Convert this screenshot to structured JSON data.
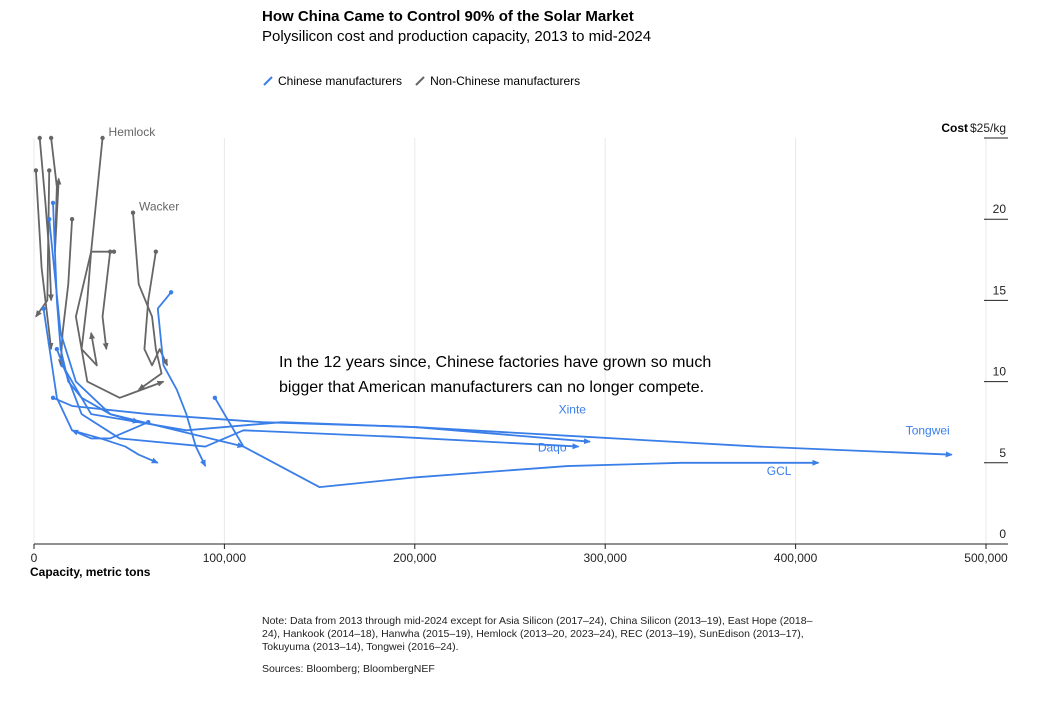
{
  "header": {
    "title": "How China Came to Control 90% of the Solar Market",
    "subtitle": "Polysilicon cost and production capacity, 2013 to mid-2024"
  },
  "legend": {
    "chinese": "Chinese manufacturers",
    "non_chinese": "Non-Chinese manufacturers"
  },
  "annotation": {
    "line1": "In the 12 years since, Chinese factories have grown so much",
    "line2": "bigger that American manufacturers can no longer compete."
  },
  "footer": {
    "note": "Note: Data from 2013 through mid-2024 except for Asia Silicon (2017–24), China Silicon (2013–19), East Hope (2018–24), Hankook (2014–18), Hanwha (2015–19), Hemlock (2013–20, 2023–24), REC (2013–19), SunEdison (2013–17), Tokuyuma (2013–14), Tongwei (2016–24).",
    "sources": "Sources: Bloomberg; BloombergNEF"
  },
  "colors": {
    "chinese": "#3a7ee8",
    "non_chinese": "#666666",
    "grid": "#e8e8e8",
    "axis": "#222222"
  },
  "chart_data": {
    "type": "line",
    "xlabel": "Capacity, metric tons",
    "ylabel": "Cost",
    "y_unit_label": "$25/kg",
    "xlim": [
      0,
      500000
    ],
    "ylim": [
      0,
      25
    ],
    "x_ticks": [
      0,
      100000,
      200000,
      300000,
      400000,
      500000
    ],
    "x_tick_labels": [
      "0",
      "100,000",
      "200,000",
      "300,000",
      "400,000",
      "500,000"
    ],
    "y_ticks": [
      0,
      5,
      10,
      15,
      20,
      25
    ],
    "y_tick_labels": [
      "0",
      "5",
      "10",
      "15",
      "20",
      "$25/kg"
    ],
    "grid": true,
    "legend_position": "top-left",
    "series": [
      {
        "name": "Hemlock",
        "group": "non-chinese",
        "label": "Hemlock",
        "x": [
          36000,
          30000,
          28000,
          25000,
          33000,
          30000
        ],
        "y": [
          25,
          18,
          15,
          12,
          11,
          13
        ]
      },
      {
        "name": "Wacker",
        "group": "non-chinese",
        "label": "Wacker",
        "x": [
          52000,
          55000,
          62000,
          64000,
          67000,
          55000
        ],
        "y": [
          20.4,
          16,
          14,
          12,
          10.5,
          9.5
        ]
      },
      {
        "name": "",
        "group": "non-chinese",
        "x": [
          3000,
          6000,
          8000,
          9000
        ],
        "y": [
          25,
          21,
          18,
          15
        ]
      },
      {
        "name": "",
        "group": "non-chinese",
        "x": [
          9000,
          12000,
          11000,
          13000
        ],
        "y": [
          25,
          22,
          18,
          22.5
        ]
      },
      {
        "name": "",
        "group": "non-chinese",
        "x": [
          1000,
          4000,
          7000,
          9000
        ],
        "y": [
          23,
          17,
          14,
          12
        ]
      },
      {
        "name": "",
        "group": "non-chinese",
        "x": [
          20000,
          18000,
          15000,
          14000
        ],
        "y": [
          20,
          16,
          13,
          11
        ]
      },
      {
        "name": "",
        "group": "non-chinese",
        "x": [
          42000,
          30000,
          22000,
          28000,
          45000,
          68000
        ],
        "y": [
          18,
          18,
          14,
          10,
          9,
          10
        ]
      },
      {
        "name": "",
        "group": "non-chinese",
        "x": [
          64000,
          60000,
          58000,
          62000,
          66000,
          70000
        ],
        "y": [
          18,
          15,
          12,
          11,
          12,
          11
        ]
      },
      {
        "name": "",
        "group": "non-chinese",
        "x": [
          40000,
          36000,
          38000
        ],
        "y": [
          18,
          14,
          12
        ]
      },
      {
        "name": "",
        "group": "non-chinese",
        "x": [
          8000,
          7000,
          1000
        ],
        "y": [
          23,
          15,
          14
        ]
      },
      {
        "name": "Tongwei",
        "group": "chinese",
        "label": "Tongwei",
        "x": [
          10000,
          20000,
          60000,
          120000,
          200000,
          290000,
          380000,
          482000
        ],
        "y": [
          9,
          8.5,
          8,
          7.5,
          7.2,
          6.6,
          6,
          5.5
        ]
      },
      {
        "name": "Xinte",
        "group": "chinese",
        "label": "Xinte",
        "x": [
          15000,
          30000,
          80000,
          130000,
          200000,
          292000
        ],
        "y": [
          11,
          8,
          7,
          7.5,
          7.2,
          6.3
        ]
      },
      {
        "name": "Daqo",
        "group": "chinese",
        "label": "Daqo",
        "x": [
          12000,
          25000,
          45000,
          90000,
          110000,
          190000,
          286000
        ],
        "y": [
          12,
          8,
          6.5,
          6,
          7,
          6.6,
          6.0
        ]
      },
      {
        "name": "GCL",
        "group": "chinese",
        "label": "GCL",
        "x": [
          95000,
          110000,
          150000,
          200000,
          280000,
          340000,
          412000
        ],
        "y": [
          9,
          6,
          3.5,
          4.1,
          4.8,
          5,
          5
        ]
      },
      {
        "name": "",
        "group": "chinese",
        "x": [
          5000,
          12000,
          20000,
          35000,
          48000,
          55000,
          65000
        ],
        "y": [
          14.5,
          9,
          7,
          6.5,
          6,
          5.5,
          5
        ]
      },
      {
        "name": "",
        "group": "chinese",
        "x": [
          72000,
          65000,
          68000,
          75000,
          80000,
          85000,
          90000
        ],
        "y": [
          15.5,
          14.5,
          11,
          9.5,
          8,
          6,
          4.8
        ]
      },
      {
        "name": "",
        "group": "chinese",
        "x": [
          10000,
          12000,
          14000,
          18000,
          25000,
          40000,
          55000
        ],
        "y": [
          21,
          15,
          12,
          10,
          9,
          8,
          7.5
        ]
      },
      {
        "name": "",
        "group": "chinese",
        "x": [
          8000,
          14000,
          22000,
          40000,
          75000,
          110000
        ],
        "y": [
          20,
          13,
          10,
          8,
          7,
          6
        ]
      },
      {
        "name": "",
        "group": "chinese",
        "x": [
          60000,
          50000,
          40000,
          30000,
          20000
        ],
        "y": [
          7.5,
          7,
          6.5,
          6.5,
          7
        ]
      }
    ]
  }
}
